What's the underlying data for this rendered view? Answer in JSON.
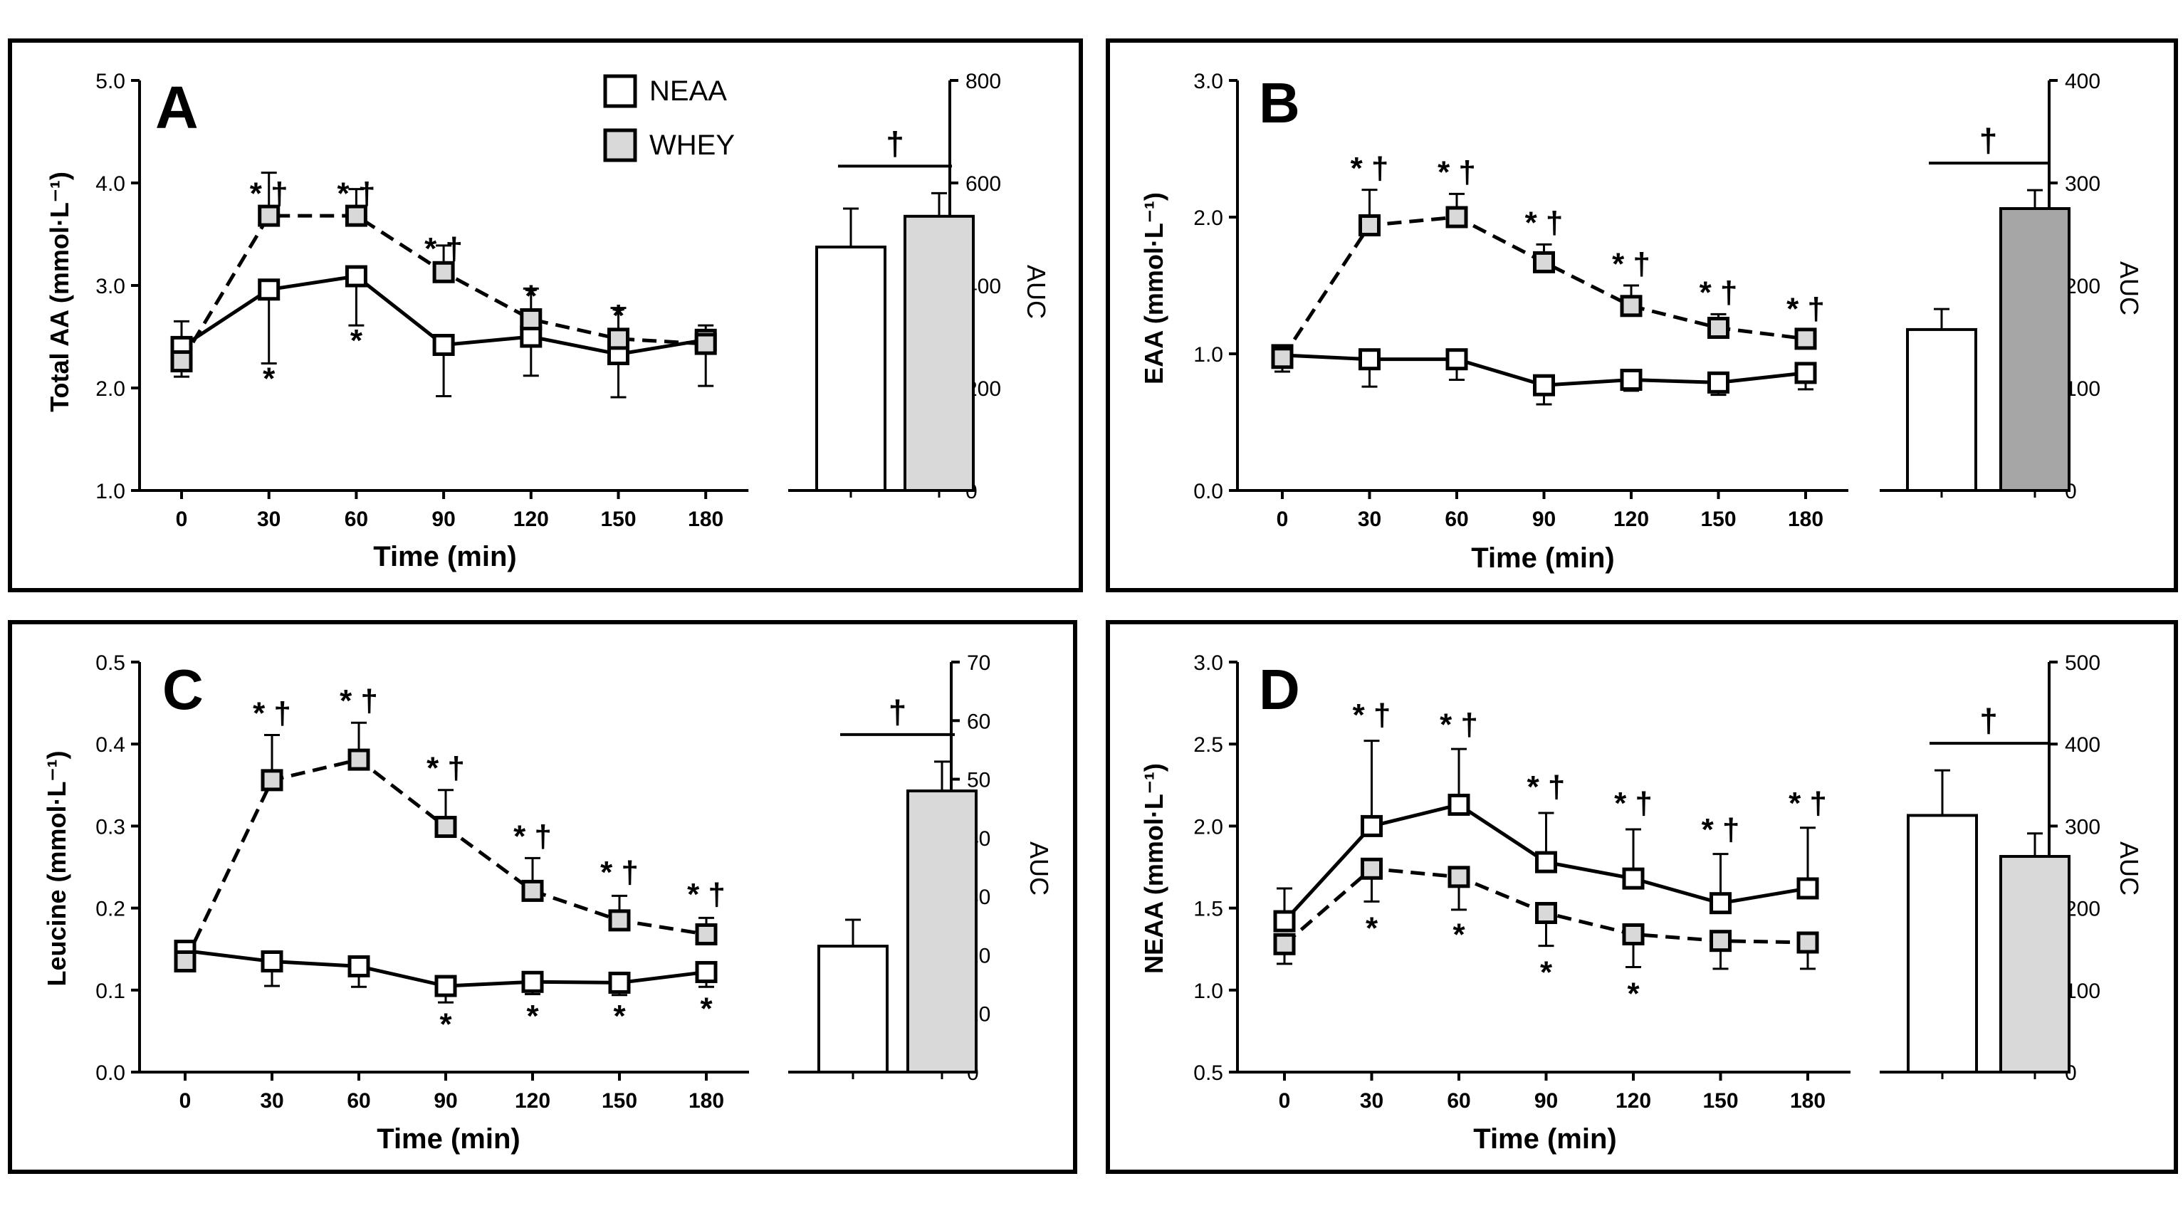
{
  "legend": {
    "neaa_label": "NEAA",
    "whey_label": "WHEY"
  },
  "chart_data": [
    {
      "id": "A",
      "panel_label": "A",
      "type": "line",
      "xlabel": "Time (min)",
      "ylabel": "Total AA (mmol·L⁻¹)",
      "x": [
        0,
        30,
        60,
        90,
        120,
        150,
        180
      ],
      "ylim": [
        1.0,
        5.0
      ],
      "yticks": [
        "1.0",
        "2.0",
        "3.0",
        "4.0",
        "5.0"
      ],
      "series": [
        {
          "name": "NEAA",
          "values": [
            2.4,
            2.96,
            3.09,
            2.42,
            2.5,
            2.33,
            2.47
          ],
          "errors": [
            0.25,
            0.72,
            0.48,
            0.5,
            0.38,
            0.42,
            0.45
          ],
          "err_dir": [
            1,
            -1,
            -1,
            -1,
            -1,
            -1,
            -1
          ]
        },
        {
          "name": "WHEY",
          "values": [
            2.26,
            3.68,
            3.68,
            3.13,
            2.67,
            2.48,
            2.43
          ],
          "errors": [
            0.15,
            0.42,
            0.26,
            0.26,
            0.3,
            0.3,
            0.18
          ],
          "err_dir": [
            -1,
            1,
            1,
            1,
            1,
            1,
            1
          ]
        }
      ],
      "annotations": [
        {
          "x": 30,
          "y": 3.74,
          "text": "* †",
          "pos": "above"
        },
        {
          "x": 60,
          "y": 3.74,
          "text": "* †",
          "pos": "above"
        },
        {
          "x": 90,
          "y": 3.2,
          "text": "* †",
          "pos": "above"
        },
        {
          "x": 120,
          "y": 2.74,
          "text": "*",
          "pos": "above"
        },
        {
          "x": 150,
          "y": 2.55,
          "text": "*",
          "pos": "above"
        },
        {
          "x": 30,
          "y": 2.24,
          "text": "*",
          "pos": "below"
        },
        {
          "x": 60,
          "y": 2.61,
          "text": "*",
          "pos": "below"
        }
      ],
      "auc": {
        "ylabel": "AUC",
        "ylim": [
          0,
          800
        ],
        "yticks": [
          "0",
          "200",
          "400",
          "600",
          "800"
        ],
        "values": [
          475,
          535
        ],
        "errors": [
          75,
          45
        ],
        "significance": "†"
      }
    },
    {
      "id": "B",
      "panel_label": "B",
      "type": "line",
      "xlabel": "Time (min)",
      "ylabel": "EAA (mmol·L⁻¹)",
      "x": [
        0,
        30,
        60,
        90,
        120,
        150,
        180
      ],
      "ylim": [
        0.0,
        3.0
      ],
      "yticks": [
        "0.0",
        "1.0",
        "2.0",
        "3.0"
      ],
      "series": [
        {
          "name": "NEAA",
          "values": [
            0.99,
            0.96,
            0.96,
            0.77,
            0.81,
            0.79,
            0.86
          ],
          "errors": [
            0.12,
            0.2,
            0.15,
            0.14,
            0.08,
            0.09,
            0.12
          ],
          "err_dir": [
            -1,
            -1,
            -1,
            -1,
            -1,
            -1,
            -1
          ]
        },
        {
          "name": "WHEY",
          "values": [
            0.97,
            1.94,
            2.0,
            1.67,
            1.35,
            1.19,
            1.11
          ],
          "errors": [
            0.05,
            0.26,
            0.17,
            0.13,
            0.15,
            0.1,
            0.06
          ],
          "err_dir": [
            1,
            1,
            1,
            1,
            1,
            1,
            1
          ]
        }
      ],
      "annotations": [
        {
          "x": 30,
          "y": 2.24,
          "text": "* †",
          "pos": "above"
        },
        {
          "x": 60,
          "y": 2.21,
          "text": "* †",
          "pos": "above"
        },
        {
          "x": 90,
          "y": 1.84,
          "text": "* †",
          "pos": "above"
        },
        {
          "x": 120,
          "y": 1.54,
          "text": "* †",
          "pos": "above"
        },
        {
          "x": 150,
          "y": 1.33,
          "text": "* †",
          "pos": "above"
        },
        {
          "x": 180,
          "y": 1.21,
          "text": "* †",
          "pos": "above"
        }
      ],
      "auc": {
        "ylabel": "AUC",
        "ylim": [
          0,
          400
        ],
        "yticks": [
          "0",
          "100",
          "200",
          "300",
          "400"
        ],
        "values": [
          157,
          275
        ],
        "errors": [
          20,
          18
        ],
        "significance": "†",
        "whey_color": "#a6a6a6"
      }
    },
    {
      "id": "C",
      "panel_label": "C",
      "type": "line",
      "xlabel": "Time (min)",
      "ylabel": "Leucine (mmol·L⁻¹)",
      "x": [
        0,
        30,
        60,
        90,
        120,
        150,
        180
      ],
      "ylim": [
        0.0,
        0.5
      ],
      "yticks": [
        "0.0",
        "0.1",
        "0.2",
        "0.3",
        "0.4",
        "0.5"
      ],
      "series": [
        {
          "name": "NEAA",
          "values": [
            0.148,
            0.135,
            0.129,
            0.105,
            0.11,
            0.109,
            0.122
          ],
          "errors": [
            0.02,
            0.03,
            0.025,
            0.02,
            0.015,
            0.015,
            0.018
          ],
          "err_dir": [
            -1,
            -1,
            -1,
            -1,
            -1,
            -1,
            -1
          ]
        },
        {
          "name": "WHEY",
          "values": [
            0.135,
            0.356,
            0.381,
            0.299,
            0.221,
            0.185,
            0.168
          ],
          "errors": [
            0.01,
            0.055,
            0.045,
            0.045,
            0.04,
            0.03,
            0.02
          ],
          "err_dir": [
            -1,
            1,
            1,
            1,
            1,
            1,
            1
          ]
        }
      ],
      "annotations": [
        {
          "x": 30,
          "y": 0.418,
          "text": "* †",
          "pos": "above"
        },
        {
          "x": 60,
          "y": 0.433,
          "text": "* †",
          "pos": "above"
        },
        {
          "x": 90,
          "y": 0.351,
          "text": "* †",
          "pos": "above"
        },
        {
          "x": 120,
          "y": 0.268,
          "text": "* †",
          "pos": "above"
        },
        {
          "x": 150,
          "y": 0.224,
          "text": "* †",
          "pos": "above"
        },
        {
          "x": 180,
          "y": 0.197,
          "text": "* †",
          "pos": "above"
        },
        {
          "x": 90,
          "y": 0.077,
          "text": "*",
          "pos": "below"
        },
        {
          "x": 120,
          "y": 0.087,
          "text": "*",
          "pos": "below"
        },
        {
          "x": 150,
          "y": 0.087,
          "text": "*",
          "pos": "below"
        },
        {
          "x": 180,
          "y": 0.096,
          "text": "*",
          "pos": "below"
        }
      ],
      "auc": {
        "ylabel": "AUC",
        "ylim": [
          0,
          70
        ],
        "yticks": [
          "0",
          "10",
          "20",
          "30",
          "40",
          "50",
          "60",
          "70"
        ],
        "values": [
          21.5,
          48
        ],
        "errors": [
          4.5,
          5
        ],
        "significance": "†"
      }
    },
    {
      "id": "D",
      "panel_label": "D",
      "type": "line",
      "xlabel": "Time (min)",
      "ylabel": "NEAA (mmol·L⁻¹)",
      "x": [
        0,
        30,
        60,
        90,
        120,
        150,
        180
      ],
      "ylim": [
        0.5,
        3.0
      ],
      "yticks": [
        "0.5",
        "1.0",
        "1.5",
        "2.0",
        "2.5",
        "3.0"
      ],
      "series": [
        {
          "name": "NEAA",
          "values": [
            1.42,
            2.0,
            2.13,
            1.78,
            1.68,
            1.53,
            1.62
          ],
          "errors": [
            0.2,
            0.52,
            0.34,
            0.3,
            0.3,
            0.3,
            0.37
          ],
          "err_dir": [
            1,
            1,
            1,
            1,
            1,
            1,
            1
          ]
        },
        {
          "name": "WHEY",
          "values": [
            1.28,
            1.74,
            1.69,
            1.47,
            1.34,
            1.3,
            1.29
          ],
          "errors": [
            0.12,
            0.2,
            0.2,
            0.2,
            0.2,
            0.17,
            0.16
          ],
          "err_dir": [
            -1,
            -1,
            -1,
            -1,
            -1,
            -1,
            -1
          ]
        }
      ],
      "annotations": [
        {
          "x": 30,
          "y": 2.58,
          "text": "* †",
          "pos": "above"
        },
        {
          "x": 60,
          "y": 2.52,
          "text": "* †",
          "pos": "above"
        },
        {
          "x": 90,
          "y": 2.14,
          "text": "* †",
          "pos": "above"
        },
        {
          "x": 120,
          "y": 2.04,
          "text": "* †",
          "pos": "above"
        },
        {
          "x": 150,
          "y": 1.88,
          "text": "* †",
          "pos": "above"
        },
        {
          "x": 180,
          "y": 2.04,
          "text": "* †",
          "pos": "above"
        },
        {
          "x": 30,
          "y": 1.47,
          "text": "*",
          "pos": "below"
        },
        {
          "x": 60,
          "y": 1.43,
          "text": "*",
          "pos": "below"
        },
        {
          "x": 90,
          "y": 1.2,
          "text": "*",
          "pos": "below"
        },
        {
          "x": 120,
          "y": 1.07,
          "text": "*",
          "pos": "below"
        }
      ],
      "auc": {
        "ylabel": "AUC",
        "ylim": [
          0,
          500
        ],
        "yticks": [
          "0",
          "100",
          "200",
          "300",
          "400",
          "500"
        ],
        "values": [
          313,
          263
        ],
        "errors": [
          55,
          28
        ],
        "significance": "†"
      }
    }
  ]
}
